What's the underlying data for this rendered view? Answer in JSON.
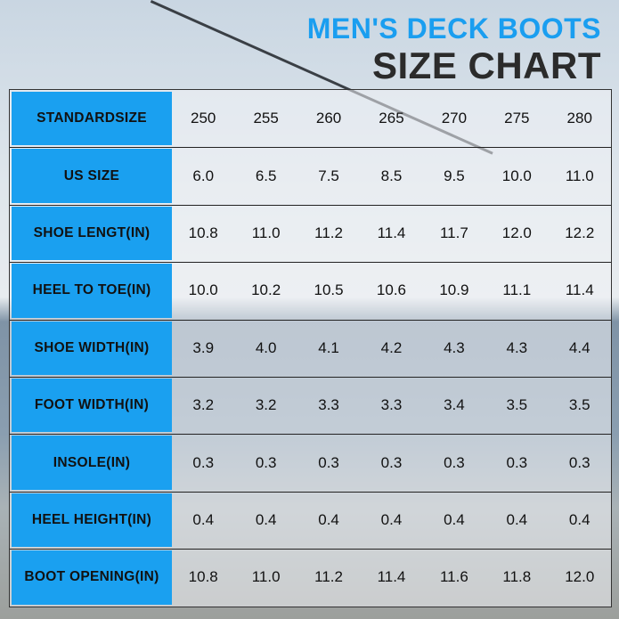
{
  "title": {
    "line1": "MEN'S DECK BOOTS",
    "line2": "SIZE CHART"
  },
  "colors": {
    "accent": "#1aa0f0",
    "title_dark": "#2b2b2b"
  },
  "rows": [
    {
      "label": "STANDARDSIZE",
      "values": [
        "250",
        "255",
        "260",
        "265",
        "270",
        "275",
        "280"
      ]
    },
    {
      "label": "US SIZE",
      "values": [
        "6.0",
        "6.5",
        "7.5",
        "8.5",
        "9.5",
        "10.0",
        "11.0"
      ]
    },
    {
      "label": "SHOE LENGT(IN)",
      "values": [
        "10.8",
        "11.0",
        "11.2",
        "11.4",
        "11.7",
        "12.0",
        "12.2"
      ]
    },
    {
      "label": "HEEL TO TOE(IN)",
      "values": [
        "10.0",
        "10.2",
        "10.5",
        "10.6",
        "10.9",
        "11.1",
        "11.4"
      ]
    },
    {
      "label": "SHOE WIDTH(IN)",
      "values": [
        "3.9",
        "4.0",
        "4.1",
        "4.2",
        "4.3",
        "4.3",
        "4.4"
      ]
    },
    {
      "label": "FOOT WIDTH(IN)",
      "values": [
        "3.2",
        "3.2",
        "3.3",
        "3.3",
        "3.4",
        "3.5",
        "3.5"
      ]
    },
    {
      "label": "INSOLE(IN)",
      "values": [
        "0.3",
        "0.3",
        "0.3",
        "0.3",
        "0.3",
        "0.3",
        "0.3"
      ]
    },
    {
      "label": "HEEL HEIGHT(IN)",
      "values": [
        "0.4",
        "0.4",
        "0.4",
        "0.4",
        "0.4",
        "0.4",
        "0.4"
      ]
    },
    {
      "label": "BOOT OPENING(IN)",
      "values": [
        "10.8",
        "11.0",
        "11.2",
        "11.4",
        "11.6",
        "11.8",
        "12.0"
      ]
    }
  ]
}
